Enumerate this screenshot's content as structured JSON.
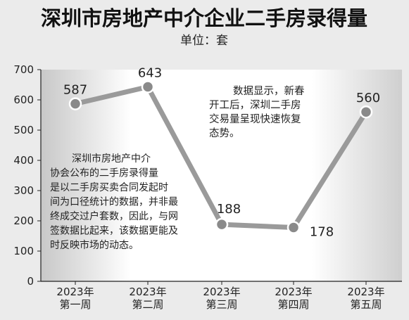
{
  "chart_data": {
    "type": "line",
    "title": "深圳市房地产中介企业二手房录得量",
    "subtitle": "单位：套",
    "categories": [
      [
        "2023年",
        "第一周"
      ],
      [
        "2023年",
        "第二周"
      ],
      [
        "2023年",
        "第三周"
      ],
      [
        "2023年",
        "第四周"
      ],
      [
        "2023年",
        "第五周"
      ]
    ],
    "series": [
      {
        "values": [
          587,
          643,
          188,
          178,
          560
        ]
      }
    ],
    "ylim": [
      0,
      700
    ],
    "yticks": [
      0,
      100,
      200,
      300,
      400,
      500,
      600,
      700
    ],
    "grid": false,
    "annotations": [
      {
        "id": "left-note",
        "lines": [
          "深圳市房地产中介",
          "协会公布的二手房录得量",
          "是以二手房买卖合同发起时",
          "间为口径统计的数据，并非最",
          "终成交过户套数，因此，与网",
          "签数据比起来，该数据更能及",
          "时反映市场的动态。"
        ]
      },
      {
        "id": "right-note",
        "lines": [
          "数据显示，新春",
          "开工后，深圳二手房",
          "交易量呈现快速恢复",
          "态势。"
        ]
      }
    ],
    "colors": {
      "background": "#ebebeb",
      "plot_background": "#ffffff",
      "line": "#9a9a9a",
      "marker": "#8a8a8a",
      "text": "#222222"
    }
  }
}
